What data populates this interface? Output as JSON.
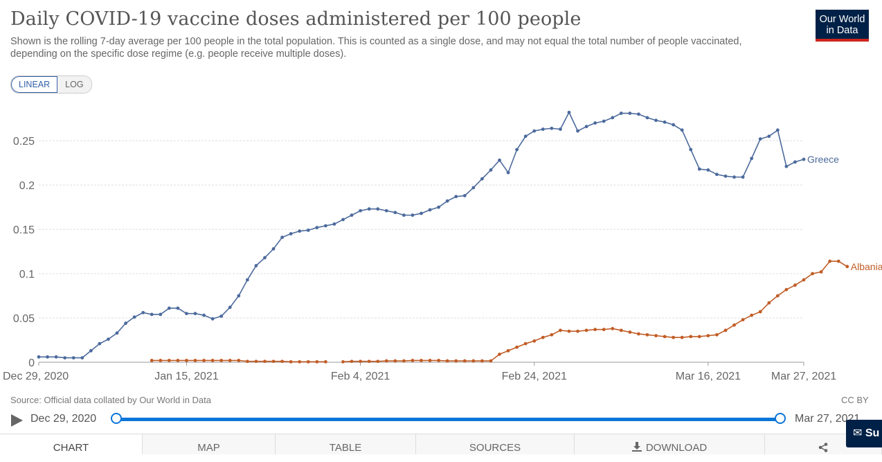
{
  "title": "Daily COVID-19 vaccine doses administered per 100 people",
  "subtitle": "Shown is the rolling 7-day average per 100 people in the total population. This is counted as a single dose, and may not equal the total number of people vaccinated, depending on the specific dose regime (e.g. people receive multiple doses).",
  "logo": {
    "line1": "Our World",
    "line2": "in Data"
  },
  "scale_toggle": {
    "linear": "LINEAR",
    "log": "LOG",
    "selected": "LINEAR"
  },
  "footer": {
    "source": "Source: Official data collated by Our World in Data",
    "license": "CC BY"
  },
  "timeline": {
    "start": "Dec 29, 2020",
    "end": "Mar 27, 2021"
  },
  "tabs": {
    "chart": "CHART",
    "map": "MAP",
    "table": "TABLE",
    "sources": "SOURCES",
    "download": "DOWNLOAD"
  },
  "subscribe_label": "Su",
  "colors": {
    "greece": "#4c6a9c",
    "albania": "#c15d26",
    "brand": "#002147",
    "accent": "#ce261e",
    "timeline": "#0b75d8"
  },
  "chart_data": {
    "type": "line",
    "title": "Daily COVID-19 vaccine doses administered per 100 people",
    "xlabel": "",
    "ylabel": "",
    "x_start_date": "2020-12-29",
    "xlim": [
      "Dec 29, 2020",
      "Mar 27, 2021"
    ],
    "ylim": [
      0,
      0.29
    ],
    "yticks": [
      0,
      0.05,
      0.1,
      0.15,
      0.2,
      0.25
    ],
    "ytick_labels": [
      "0",
      "0.05",
      "0.1",
      "0.15",
      "0.2",
      "0.25"
    ],
    "xticks": [
      "Dec 29, 2020",
      "Jan 15, 2021",
      "Feb 4, 2021",
      "Feb 24, 2021",
      "Mar 16, 2021",
      "Mar 27, 2021"
    ],
    "grid": "horizontal dashed",
    "legend": "line-end labels",
    "series": [
      {
        "name": "Greece",
        "start_date": "Dec 29, 2020",
        "values": [
          0.006,
          0.006,
          0.006,
          0.005,
          0.005,
          0.005,
          0.013,
          0.021,
          0.026,
          0.033,
          0.044,
          0.051,
          0.056,
          0.054,
          0.054,
          0.061,
          0.061,
          0.055,
          0.055,
          0.053,
          0.049,
          0.052,
          0.062,
          0.075,
          0.093,
          0.109,
          0.118,
          0.128,
          0.141,
          0.145,
          0.148,
          0.149,
          0.152,
          0.154,
          0.156,
          0.161,
          0.166,
          0.171,
          0.173,
          0.173,
          0.171,
          0.169,
          0.166,
          0.166,
          0.168,
          0.172,
          0.175,
          0.182,
          0.187,
          0.188,
          0.197,
          0.207,
          0.217,
          0.228,
          0.214,
          0.24,
          0.255,
          0.261,
          0.263,
          0.264,
          0.263,
          0.282,
          0.261,
          0.266,
          0.27,
          0.272,
          0.276,
          0.281,
          0.281,
          0.28,
          0.276,
          0.273,
          0.271,
          0.268,
          0.262,
          0.24,
          0.218,
          0.217,
          0.212,
          0.21,
          0.209,
          0.209,
          0.23,
          0.252,
          0.255,
          0.262,
          0.221,
          0.226,
          0.229
        ]
      },
      {
        "name": "Albania",
        "segments": [
          {
            "start_date": "Jan 11, 2021",
            "values": [
              0.002,
              0.002,
              0.002,
              0.002,
              0.002,
              0.002,
              0.002,
              0.002,
              0.002,
              0.002,
              0.002,
              0.001,
              0.001,
              0.001,
              0.001,
              0.001,
              0.0005,
              0.0005,
              0.0005,
              0.0005,
              0.0005
            ]
          },
          {
            "start_date": "Feb 2, 2021",
            "values": [
              0.0005,
              0.001,
              0.001,
              0.001,
              0.001,
              0.0015,
              0.0015,
              0.0015,
              0.002,
              0.002,
              0.002,
              0.002,
              0.0015,
              0.0015,
              0.0015,
              0.0015,
              0.0015,
              0.0015,
              0.009,
              0.013,
              0.017,
              0.021,
              0.024,
              0.028,
              0.031,
              0.036,
              0.035,
              0.035,
              0.036,
              0.037,
              0.037,
              0.038,
              0.036,
              0.034,
              0.032,
              0.031,
              0.03,
              0.029,
              0.028,
              0.028,
              0.029,
              0.029,
              0.03,
              0.031,
              0.036,
              0.042,
              0.048,
              0.053,
              0.057,
              0.067,
              0.075,
              0.082,
              0.087,
              0.093,
              0.1,
              0.102,
              0.114,
              0.114,
              0.108
            ]
          }
        ]
      }
    ]
  }
}
